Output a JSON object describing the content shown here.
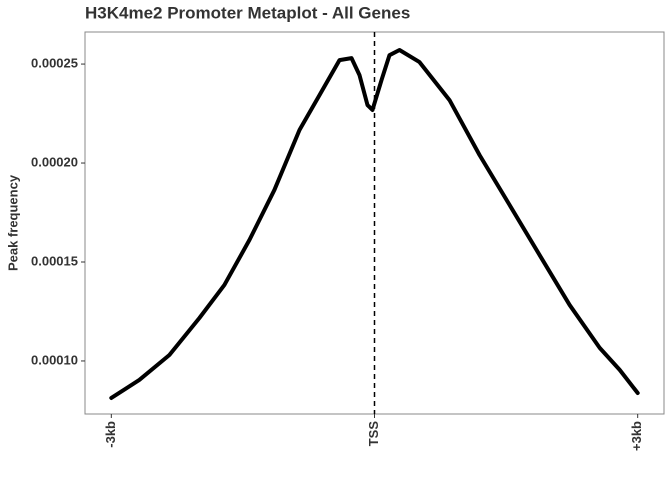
{
  "chart_data": {
    "type": "line",
    "title": "H3K4me2 Promoter Metaplot - All Genes",
    "y_label": "Peak frequency",
    "x": [
      -3000,
      -2681,
      -2338,
      -1996,
      -1711,
      -1426,
      -1141,
      -855,
      -627,
      -399,
      -262,
      -171,
      -80,
      -23,
      80,
      171,
      285,
      513,
      855,
      1198,
      1540,
      1882,
      2224,
      2567,
      2795,
      3000
    ],
    "series": [
      {
        "color": "#000000",
        "values": [
          8.13e-05,
          9.04e-05,
          0.000103,
          0.0001217,
          0.0001384,
          0.0001611,
          0.0001864,
          0.0002167,
          0.0002343,
          0.000252,
          0.000253,
          0.0002444,
          0.0002293,
          0.0002268,
          0.0002419,
          0.0002545,
          0.0002571,
          0.000251,
          0.0002318,
          0.000204,
          0.0001788,
          0.0001535,
          0.0001283,
          0.0001066,
          9.55e-05,
          8.38e-05
        ]
      }
    ],
    "xlim": [
      -3300,
      3300
    ],
    "xticks": [
      {
        "value": -3000,
        "label": "-3kb"
      },
      {
        "value": 0,
        "label": "TSS"
      },
      {
        "value": 3000,
        "label": "+3kb"
      }
    ],
    "ylim": [
      7.32e-05,
      0.0002662
    ],
    "yticks": [
      {
        "value": 0.0001,
        "label": "0.00010"
      },
      0.00015,
      {
        "value": 0.0002,
        "label": "0.00020"
      },
      0.00025
    ],
    "vline": 0,
    "grid": false
  }
}
